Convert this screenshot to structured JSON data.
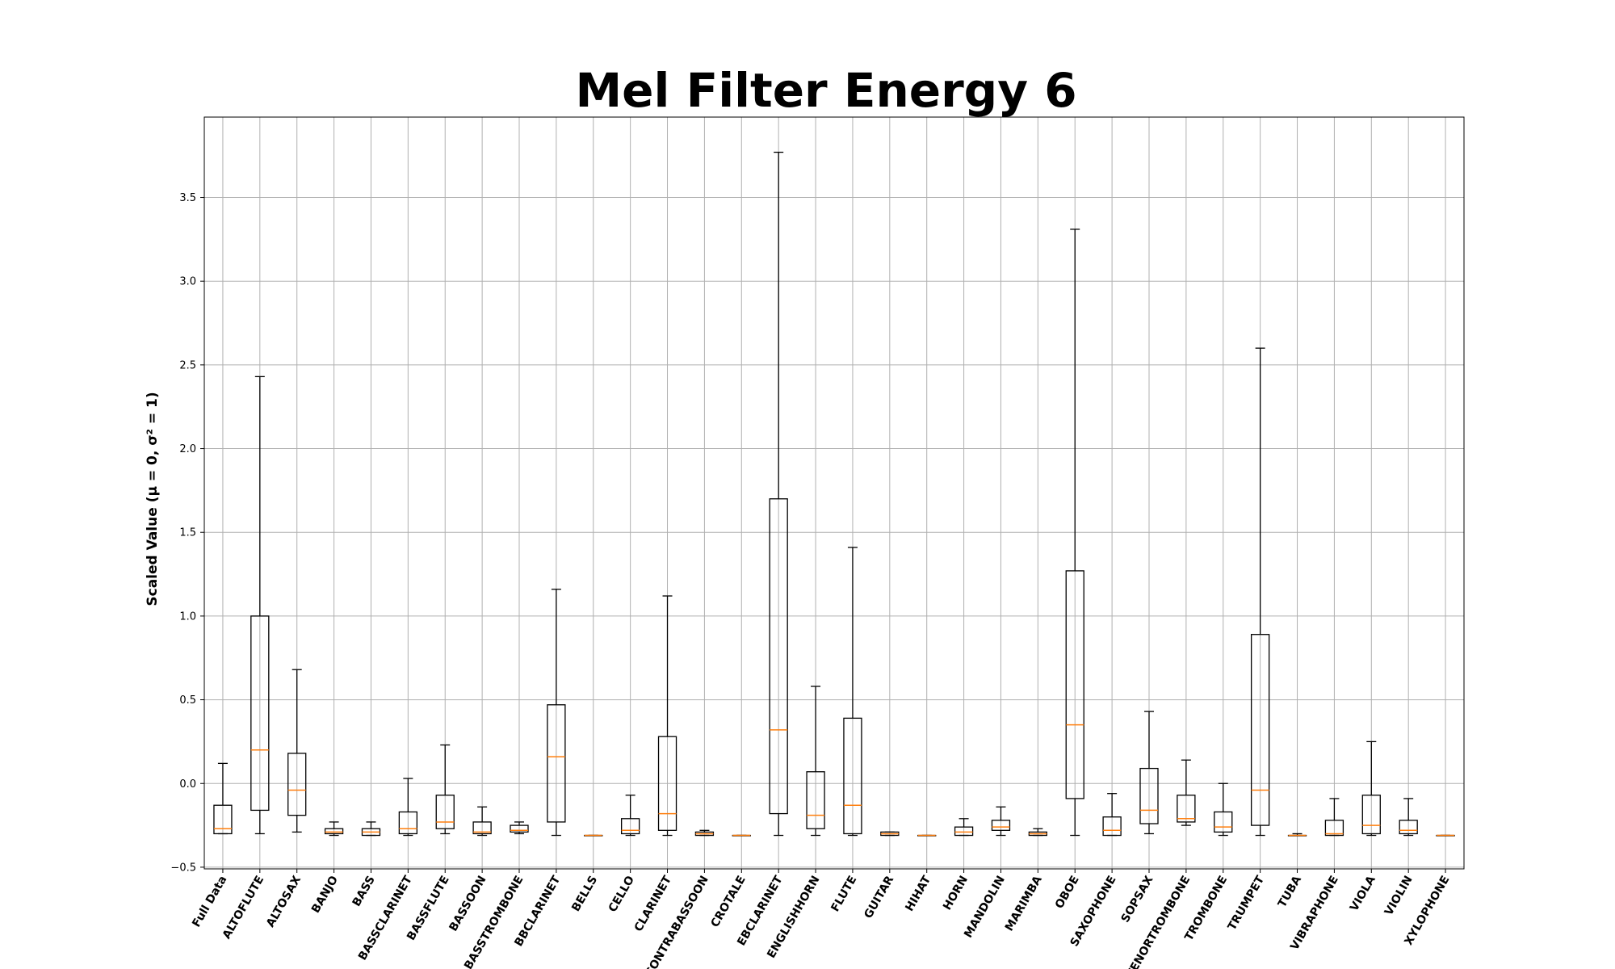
{
  "chart_data": {
    "type": "boxplot",
    "title": "Mel Filter Energy 6",
    "xlabel": "",
    "ylabel": "Scaled Value (μ = 0, σ² = 1)",
    "ylim": [
      -0.51,
      3.98
    ],
    "yticks": [
      -0.5,
      0.0,
      0.5,
      1.0,
      1.5,
      2.0,
      2.5,
      3.0,
      3.5
    ],
    "ytick_labels": [
      "−0.5",
      "0.0",
      "0.5",
      "1.0",
      "1.5",
      "2.0",
      "2.5",
      "3.0",
      "3.5"
    ],
    "grid": true,
    "median_color": "#ff7f0e",
    "box_color": "#000000",
    "categories": [
      "Full Data",
      "ALTOFLUTE",
      "ALTOSAX",
      "BANJO",
      "BASS",
      "BASSCLARINET",
      "BASSFLUTE",
      "BASSOON",
      "BASSTROMBONE",
      "BBCLARINET",
      "BELLS",
      "CELLO",
      "CLARINET",
      "CONTRABASSOON",
      "CROTALE",
      "EBCLARINET",
      "ENGLISHHORN",
      "FLUTE",
      "GUITAR",
      "HIHAT",
      "HORN",
      "MANDOLIN",
      "MARIMBA",
      "OBOE",
      "SAXOPHONE",
      "SOPSAX",
      "TENORTROMBONE",
      "TROMBONE",
      "TRUMPET",
      "TUBA",
      "VIBRAPHONE",
      "VIOLA",
      "VIOLIN",
      "XYLOPHONE"
    ],
    "series": [
      {
        "whislo": -0.3,
        "q1": -0.3,
        "med": -0.27,
        "q3": -0.13,
        "whishi": 0.12
      },
      {
        "whislo": -0.3,
        "q1": -0.16,
        "med": 0.2,
        "q3": 1.0,
        "whishi": 2.43
      },
      {
        "whislo": -0.29,
        "q1": -0.19,
        "med": -0.04,
        "q3": 0.18,
        "whishi": 0.68
      },
      {
        "whislo": -0.31,
        "q1": -0.3,
        "med": -0.29,
        "q3": -0.27,
        "whishi": -0.23
      },
      {
        "whislo": -0.31,
        "q1": -0.31,
        "med": -0.29,
        "q3": -0.27,
        "whishi": -0.23
      },
      {
        "whislo": -0.31,
        "q1": -0.3,
        "med": -0.27,
        "q3": -0.17,
        "whishi": 0.03
      },
      {
        "whislo": -0.3,
        "q1": -0.27,
        "med": -0.23,
        "q3": -0.07,
        "whishi": 0.23
      },
      {
        "whislo": -0.31,
        "q1": -0.3,
        "med": -0.29,
        "q3": -0.23,
        "whishi": -0.14
      },
      {
        "whislo": -0.3,
        "q1": -0.29,
        "med": -0.28,
        "q3": -0.25,
        "whishi": -0.23
      },
      {
        "whislo": -0.31,
        "q1": -0.23,
        "med": 0.16,
        "q3": 0.47,
        "whishi": 1.16
      },
      {
        "whislo": -0.31,
        "q1": -0.31,
        "med": -0.31,
        "q3": -0.31,
        "whishi": -0.31
      },
      {
        "whislo": -0.31,
        "q1": -0.3,
        "med": -0.28,
        "q3": -0.21,
        "whishi": -0.07
      },
      {
        "whislo": -0.31,
        "q1": -0.28,
        "med": -0.18,
        "q3": 0.28,
        "whishi": 1.12
      },
      {
        "whislo": -0.31,
        "q1": -0.31,
        "med": -0.3,
        "q3": -0.29,
        "whishi": -0.28
      },
      {
        "whislo": -0.31,
        "q1": -0.31,
        "med": -0.31,
        "q3": -0.31,
        "whishi": -0.31
      },
      {
        "whislo": -0.31,
        "q1": -0.18,
        "med": 0.32,
        "q3": 1.7,
        "whishi": 3.77
      },
      {
        "whislo": -0.31,
        "q1": -0.27,
        "med": -0.19,
        "q3": 0.07,
        "whishi": 0.58
      },
      {
        "whislo": -0.31,
        "q1": -0.3,
        "med": -0.13,
        "q3": 0.39,
        "whishi": 1.41
      },
      {
        "whislo": -0.31,
        "q1": -0.31,
        "med": -0.3,
        "q3": -0.29,
        "whishi": -0.29
      },
      {
        "whislo": -0.31,
        "q1": -0.31,
        "med": -0.31,
        "q3": -0.31,
        "whishi": -0.31
      },
      {
        "whislo": -0.31,
        "q1": -0.31,
        "med": -0.29,
        "q3": -0.26,
        "whishi": -0.21
      },
      {
        "whislo": -0.31,
        "q1": -0.28,
        "med": -0.26,
        "q3": -0.22,
        "whishi": -0.14
      },
      {
        "whislo": -0.31,
        "q1": -0.31,
        "med": -0.3,
        "q3": -0.29,
        "whishi": -0.27
      },
      {
        "whislo": -0.31,
        "q1": -0.09,
        "med": 0.35,
        "q3": 1.27,
        "whishi": 3.31
      },
      {
        "whislo": -0.31,
        "q1": -0.31,
        "med": -0.28,
        "q3": -0.2,
        "whishi": -0.06
      },
      {
        "whislo": -0.3,
        "q1": -0.24,
        "med": -0.16,
        "q3": 0.09,
        "whishi": 0.43
      },
      {
        "whislo": -0.25,
        "q1": -0.23,
        "med": -0.21,
        "q3": -0.07,
        "whishi": 0.14
      },
      {
        "whislo": -0.31,
        "q1": -0.29,
        "med": -0.26,
        "q3": -0.17,
        "whishi": 0.0
      },
      {
        "whislo": -0.31,
        "q1": -0.25,
        "med": -0.04,
        "q3": 0.89,
        "whishi": 2.6
      },
      {
        "whislo": -0.31,
        "q1": -0.31,
        "med": -0.31,
        "q3": -0.31,
        "whishi": -0.3
      },
      {
        "whislo": -0.31,
        "q1": -0.31,
        "med": -0.3,
        "q3": -0.22,
        "whishi": -0.09
      },
      {
        "whislo": -0.31,
        "q1": -0.3,
        "med": -0.25,
        "q3": -0.07,
        "whishi": 0.25
      },
      {
        "whislo": -0.31,
        "q1": -0.3,
        "med": -0.28,
        "q3": -0.22,
        "whishi": -0.09
      },
      {
        "whislo": -0.31,
        "q1": -0.31,
        "med": -0.31,
        "q3": -0.31,
        "whishi": -0.31
      }
    ]
  }
}
